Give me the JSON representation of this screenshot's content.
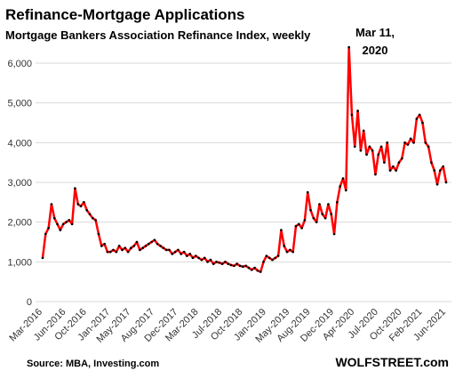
{
  "chart_data": {
    "type": "line",
    "title": "Refinance-Mortgage  Applications",
    "subtitle": "Mortgage Bankers Association Refinance Index, weekly",
    "annotation": [
      "Mar 11,",
      "2020"
    ],
    "source": "Source: MBA, Investing.com",
    "credit": "WOLFSTREET.com",
    "categories": [
      "Mar-2016",
      null,
      null,
      null,
      null,
      null,
      null,
      null,
      "Jun-2016",
      null,
      null,
      null,
      null,
      null,
      null,
      "Oct-2016",
      null,
      null,
      null,
      null,
      null,
      null,
      null,
      "Jan-2017",
      null,
      null,
      null,
      null,
      null,
      null,
      "May-2017",
      null,
      null,
      null,
      null,
      null,
      null,
      null,
      "Aug-2017",
      null,
      null,
      null,
      null,
      null,
      null,
      null,
      "Dec-2017",
      null,
      null,
      null,
      null,
      null,
      null,
      "Mar-2018",
      null,
      null,
      null,
      null,
      null,
      null,
      null,
      "Jul-2018",
      null,
      null,
      null,
      null,
      null,
      null,
      "Oct-2018",
      null,
      null,
      null,
      null,
      null,
      null,
      null,
      "Jan-2019",
      null,
      null,
      null,
      null,
      null,
      null,
      null,
      "May-2019",
      null,
      null,
      null,
      null,
      null,
      null,
      "Aug-2019",
      null,
      null,
      null,
      null,
      null,
      null,
      null,
      "Dec-2019",
      null,
      null,
      null,
      null,
      null,
      null,
      "Apr-2020",
      null,
      null,
      null,
      null,
      null,
      null,
      null,
      "Jul-2020",
      null,
      null,
      null,
      null,
      null,
      null,
      null,
      "Oct-2020",
      null,
      null,
      null,
      null,
      null,
      null,
      "Feb-2021",
      null,
      null,
      null,
      null,
      null,
      null,
      null,
      "Jun-2021"
    ],
    "series": [
      {
        "name": "Refinance Index",
        "color": "#ff0000",
        "marker_color": "#000000",
        "values": [
          1100,
          1700,
          1850,
          2450,
          2100,
          1950,
          1800,
          1950,
          2000,
          2050,
          1950,
          2850,
          2450,
          2400,
          2500,
          2300,
          2200,
          2100,
          2050,
          1700,
          1400,
          1450,
          1250,
          1250,
          1300,
          1250,
          1400,
          1300,
          1350,
          1250,
          1350,
          1400,
          1500,
          1300,
          1350,
          1400,
          1450,
          1500,
          1550,
          1450,
          1400,
          1350,
          1300,
          1300,
          1200,
          1250,
          1300,
          1200,
          1250,
          1150,
          1200,
          1100,
          1150,
          1100,
          1050,
          1100,
          1000,
          1050,
          950,
          1000,
          980,
          950,
          1000,
          950,
          920,
          900,
          950,
          900,
          880,
          900,
          850,
          800,
          850,
          780,
          750,
          1000,
          1150,
          1100,
          1050,
          1100,
          1150,
          1800,
          1400,
          1250,
          1300,
          1250,
          1900,
          1950,
          1850,
          2050,
          2750,
          2300,
          2100,
          2000,
          2450,
          2200,
          2100,
          2450,
          2200,
          1700,
          2500,
          2900,
          3100,
          2800,
          6400,
          4700,
          3900,
          4800,
          3800,
          4300,
          3700,
          3900,
          3800,
          3200,
          3700,
          3900,
          3500,
          4000,
          3300,
          3400,
          3300,
          3500,
          3600,
          4000,
          3950,
          4100,
          4000,
          4600,
          4700,
          4500,
          4000,
          3900,
          3500,
          3300,
          2950,
          3300,
          3400,
          3000
        ]
      }
    ],
    "ylim": [
      0,
      6500
    ],
    "yticks": [
      0,
      {
        "value": 1000,
        "label": "1,000"
      },
      {
        "value": 2000,
        "label": "2,000"
      },
      {
        "value": 3000,
        "label": "3,000"
      },
      {
        "value": 4000,
        "label": "4,000"
      },
      {
        "value": 5000,
        "label": "5,000"
      },
      {
        "value": 6000,
        "label": "6,000"
      }
    ],
    "grid": true
  }
}
